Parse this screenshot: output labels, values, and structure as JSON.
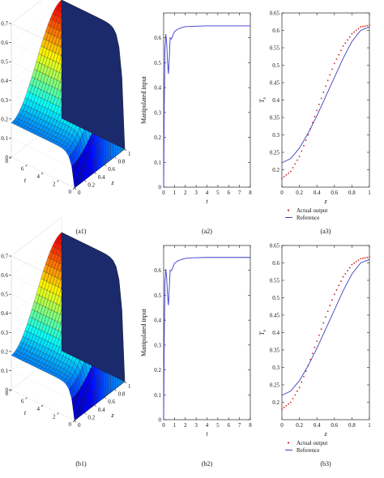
{
  "panels": [
    {
      "id": "a1",
      "type": "surface3d",
      "caption": "(a1)",
      "zlabel": "T",
      "zlabel_sub": "s",
      "xlabel": "z",
      "ylabel": "t",
      "z_ticks": [
        "0",
        "0.1",
        "0.2",
        "0.3",
        "0.4",
        "0.5",
        "0.6",
        "0.7"
      ],
      "t_ticks": [
        "0",
        "2",
        "4",
        "6",
        "8"
      ],
      "zz_ticks": [
        "0",
        "0.2",
        "0.4",
        "0.6",
        "0.8",
        "1"
      ],
      "surface": {
        "z_range": [
          0,
          1
        ],
        "t_range": [
          0,
          8
        ],
        "value_range": [
          0,
          0.7
        ],
        "colormap": "jet"
      }
    },
    {
      "id": "a2",
      "type": "line",
      "caption": "(a2)",
      "xlabel": "t",
      "ylabel": "Manipulated input",
      "xlim": [
        0,
        8
      ],
      "ylim": [
        0,
        0.7
      ],
      "xticks": [
        "0",
        "1",
        "2",
        "3",
        "4",
        "5",
        "6",
        "7",
        "8"
      ],
      "yticks": [
        "0",
        "0.1",
        "0.2",
        "0.3",
        "0.4",
        "0.5",
        "0.6"
      ],
      "series": [
        {
          "color": "#3a3acc",
          "x": [
            0,
            0.05,
            0.12,
            0.2,
            0.28,
            0.36,
            0.44,
            0.52,
            0.6,
            0.7,
            0.85,
            1.0,
            1.3,
            1.6,
            2.0,
            2.5,
            3,
            4,
            5,
            6,
            7,
            8
          ],
          "y": [
            0,
            0.3,
            0.55,
            0.615,
            0.58,
            0.5,
            0.455,
            0.52,
            0.6,
            0.595,
            0.61,
            0.625,
            0.635,
            0.64,
            0.645,
            0.646,
            0.647,
            0.648,
            0.648,
            0.648,
            0.648,
            0.648
          ]
        }
      ]
    },
    {
      "id": "a3",
      "type": "line",
      "caption": "(a3)",
      "xlabel": "z",
      "ylabel": "T",
      "ylabel_sub": "s",
      "xlim": [
        0,
        1
      ],
      "ylim": [
        0.15,
        0.65
      ],
      "xticks": [
        "0",
        "0.2",
        "0.4",
        "0.6",
        "0.8",
        "1"
      ],
      "yticks": [
        "0.2",
        "0.25",
        "0.3",
        "0.35",
        "0.4",
        "0.45",
        "0.5",
        "0.55",
        "0.6",
        "0.65"
      ],
      "legend": {
        "position": "bottom",
        "entries": [
          {
            "label": "Actual output",
            "style": "dots",
            "color": "#cc2222"
          },
          {
            "label": "Reference",
            "style": "line",
            "color": "#4040bb"
          }
        ]
      },
      "series": [
        {
          "name": "Actual output",
          "style": "dots",
          "color": "#cc2222",
          "x": [
            0,
            0.1,
            0.2,
            0.3,
            0.4,
            0.5,
            0.6,
            0.7,
            0.8,
            0.9,
            1
          ],
          "y": [
            0.175,
            0.195,
            0.238,
            0.3,
            0.37,
            0.44,
            0.505,
            0.555,
            0.59,
            0.61,
            0.615
          ]
        },
        {
          "name": "Reference",
          "style": "line",
          "color": "#4040bb",
          "x": [
            0,
            0.1,
            0.2,
            0.3,
            0.4,
            0.5,
            0.6,
            0.7,
            0.8,
            0.9,
            1
          ],
          "y": [
            0.22,
            0.232,
            0.262,
            0.305,
            0.355,
            0.41,
            0.465,
            0.52,
            0.568,
            0.6,
            0.61
          ]
        }
      ]
    },
    {
      "id": "b1",
      "type": "surface3d",
      "caption": "(b1)",
      "zlabel": "T",
      "zlabel_sub": "s",
      "xlabel": "z",
      "ylabel": "t",
      "z_ticks": [
        "0",
        "0.1",
        "0.2",
        "0.3",
        "0.4",
        "0.5",
        "0.6",
        "0.7"
      ],
      "t_ticks": [
        "0",
        "2",
        "4",
        "6",
        "8"
      ],
      "zz_ticks": [
        "0",
        "0.2",
        "0.4",
        "0.6",
        "0.8",
        "1"
      ],
      "surface": {
        "z_range": [
          0,
          1
        ],
        "t_range": [
          0,
          8
        ],
        "value_range": [
          0,
          0.7
        ],
        "colormap": "jet"
      }
    },
    {
      "id": "b2",
      "type": "line",
      "caption": "(b2)",
      "xlabel": "t",
      "ylabel": "Manipulated input",
      "xlim": [
        0,
        8
      ],
      "ylim": [
        0,
        0.7
      ],
      "xticks": [
        "0",
        "1",
        "2",
        "3",
        "4",
        "5",
        "6",
        "7",
        "8"
      ],
      "yticks": [
        "0",
        "0.1",
        "0.2",
        "0.3",
        "0.4",
        "0.5",
        "0.6"
      ],
      "series": [
        {
          "color": "#3a3acc",
          "x": [
            0,
            0.05,
            0.12,
            0.2,
            0.28,
            0.36,
            0.44,
            0.52,
            0.6,
            0.7,
            0.85,
            1.0,
            1.3,
            1.6,
            2.0,
            2.5,
            3,
            4,
            5,
            6,
            7,
            8
          ],
          "y": [
            0,
            0.3,
            0.55,
            0.605,
            0.57,
            0.5,
            0.46,
            0.53,
            0.6,
            0.598,
            0.612,
            0.628,
            0.638,
            0.643,
            0.648,
            0.65,
            0.651,
            0.652,
            0.652,
            0.652,
            0.652,
            0.652
          ]
        }
      ]
    },
    {
      "id": "b3",
      "type": "line",
      "caption": "(b3)",
      "xlabel": "z",
      "ylabel": "T",
      "ylabel_sub": "s",
      "xlim": [
        0,
        1
      ],
      "ylim": [
        0.15,
        0.65
      ],
      "xticks": [
        "0",
        "0.2",
        "0.4",
        "0.6",
        "0.8",
        "1"
      ],
      "yticks": [
        "0.2",
        "0.25",
        "0.3",
        "0.35",
        "0.4",
        "0.45",
        "0.5",
        "0.55",
        "0.6",
        "0.65"
      ],
      "legend": {
        "position": "bottom",
        "entries": [
          {
            "label": "Actual output",
            "style": "dots",
            "color": "#cc2222"
          },
          {
            "label": "Reference",
            "style": "line",
            "color": "#4040bb"
          }
        ]
      },
      "series": [
        {
          "name": "Actual output",
          "style": "dots",
          "color": "#cc2222",
          "x": [
            0,
            0.1,
            0.2,
            0.3,
            0.4,
            0.5,
            0.6,
            0.7,
            0.8,
            0.9,
            1
          ],
          "y": [
            0.18,
            0.2,
            0.242,
            0.305,
            0.375,
            0.445,
            0.51,
            0.56,
            0.595,
            0.612,
            0.617
          ]
        },
        {
          "name": "Reference",
          "style": "line",
          "color": "#4040bb",
          "x": [
            0,
            0.1,
            0.2,
            0.3,
            0.4,
            0.5,
            0.6,
            0.7,
            0.8,
            0.9,
            1
          ],
          "y": [
            0.22,
            0.232,
            0.262,
            0.305,
            0.355,
            0.41,
            0.465,
            0.52,
            0.568,
            0.6,
            0.61
          ]
        }
      ]
    }
  ],
  "chart_data": [
    {
      "type": "line",
      "panel": "(a2)",
      "xlabel": "t",
      "ylabel": "Manipulated input",
      "xlim": [
        0,
        8
      ],
      "ylim": [
        0,
        0.7
      ],
      "series": [
        {
          "x": [
            0,
            0.2,
            0.44,
            0.6,
            1,
            2,
            3,
            8
          ],
          "values": [
            0,
            0.615,
            0.455,
            0.6,
            0.625,
            0.645,
            0.647,
            0.648
          ]
        }
      ]
    },
    {
      "type": "line",
      "panel": "(a3)",
      "xlabel": "z",
      "ylabel": "Ts",
      "xlim": [
        0,
        1
      ],
      "ylim": [
        0.15,
        0.65
      ],
      "series": [
        {
          "name": "Actual output",
          "x": [
            0,
            0.2,
            0.4,
            0.6,
            0.8,
            1
          ],
          "values": [
            0.175,
            0.238,
            0.37,
            0.505,
            0.59,
            0.615
          ]
        },
        {
          "name": "Reference",
          "x": [
            0,
            0.2,
            0.4,
            0.6,
            0.8,
            1
          ],
          "values": [
            0.22,
            0.262,
            0.355,
            0.465,
            0.568,
            0.61
          ]
        }
      ]
    },
    {
      "type": "line",
      "panel": "(b2)",
      "xlabel": "t",
      "ylabel": "Manipulated input",
      "xlim": [
        0,
        8
      ],
      "ylim": [
        0,
        0.7
      ],
      "series": [
        {
          "x": [
            0,
            0.2,
            0.44,
            0.6,
            1,
            2,
            3,
            8
          ],
          "values": [
            0,
            0.605,
            0.46,
            0.6,
            0.628,
            0.648,
            0.651,
            0.652
          ]
        }
      ]
    },
    {
      "type": "line",
      "panel": "(b3)",
      "xlabel": "z",
      "ylabel": "Ts",
      "xlim": [
        0,
        1
      ],
      "ylim": [
        0.15,
        0.65
      ],
      "series": [
        {
          "name": "Actual output",
          "x": [
            0,
            0.2,
            0.4,
            0.6,
            0.8,
            1
          ],
          "values": [
            0.18,
            0.242,
            0.375,
            0.51,
            0.595,
            0.617
          ]
        },
        {
          "name": "Reference",
          "x": [
            0,
            0.2,
            0.4,
            0.6,
            0.8,
            1
          ],
          "values": [
            0.22,
            0.262,
            0.355,
            0.465,
            0.568,
            0.61
          ]
        }
      ]
    }
  ]
}
